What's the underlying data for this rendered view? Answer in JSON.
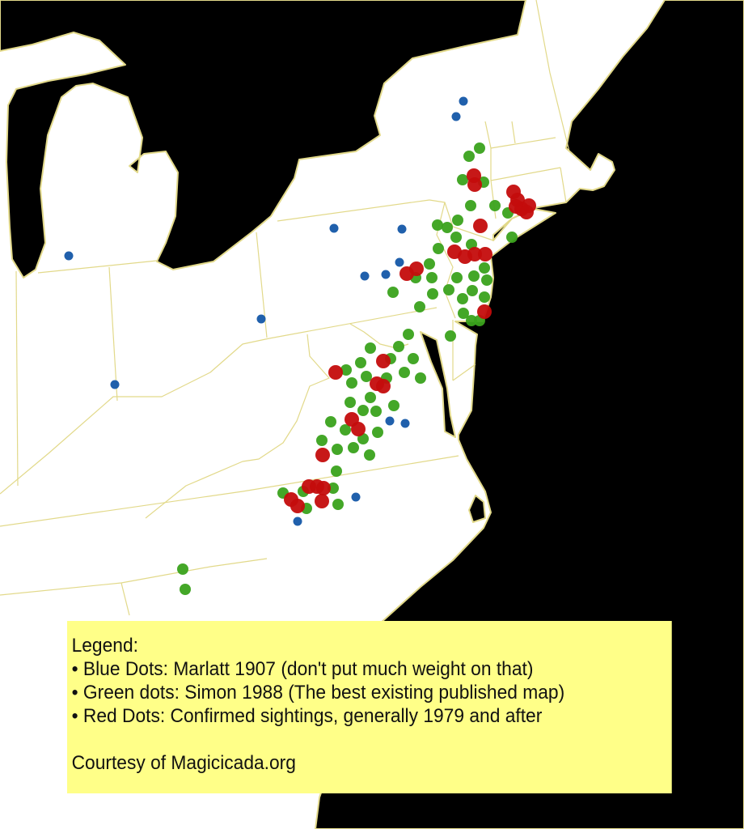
{
  "colors": {
    "ocean": "#000000",
    "land": "#ffffff",
    "borders": "#e2d98a",
    "blue_dots": "#1457a8",
    "green_dots": "#3aa21c",
    "red_dots": "#c40c0c",
    "legend_background": "#ffff88"
  },
  "legend": {
    "title": "Legend:",
    "items": [
      {
        "label": "• Blue Dots: Marlatt 1907 (don't put much weight on that)",
        "color": "#1457a8"
      },
      {
        "label": "• Green dots: Simon 1988 (The best existing published map)",
        "color": "#3aa21c"
      },
      {
        "label": "• Red Dots: Confirmed sightings, generally 1979 and after",
        "color": "#c40c0c"
      }
    ],
    "credit": "Courtesy of Magicicada.org"
  }
}
